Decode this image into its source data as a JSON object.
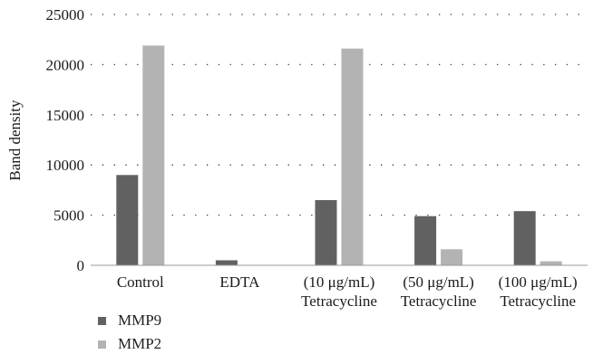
{
  "chart_data": {
    "type": "bar",
    "categories": [
      [
        "Control"
      ],
      [
        "EDTA"
      ],
      [
        "(10 μg/mL)",
        "Tetracycline"
      ],
      [
        "(50 μg/mL)",
        "Tetracycline"
      ],
      [
        "(100 μg/mL)",
        "Tetracycline"
      ]
    ],
    "series": [
      {
        "name": "MMP9",
        "color": "#616161",
        "values": [
          9000,
          500,
          6500,
          4900,
          5400
        ]
      },
      {
        "name": "MMP2",
        "color": "#b3b3b3",
        "values": [
          21900,
          0,
          21600,
          1600,
          400
        ]
      }
    ],
    "ylabel": "Band density",
    "xlabel": "",
    "ylim": [
      0,
      25000
    ],
    "yticks": [
      0,
      5000,
      10000,
      15000,
      20000,
      25000
    ],
    "grid": "dotted horizontal",
    "legend_position": "bottom-left"
  }
}
